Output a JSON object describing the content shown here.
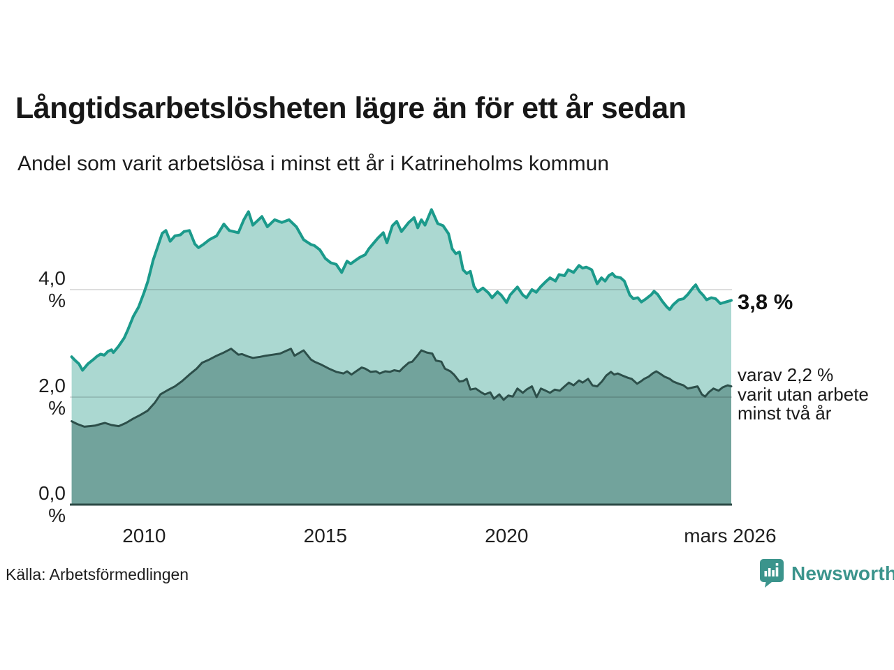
{
  "header": {
    "title": "Långtidsarbetslösheten lägre än för ett år sedan",
    "subtitle": "Andel som varit arbetslösa i minst ett år i Katrineholms kommun"
  },
  "chart_data": {
    "type": "area",
    "title": "Långtidsarbetslösheten lägre än för ett år sedan",
    "xlabel": "",
    "ylabel": "",
    "x_range": [
      2007.95,
      2026.22
    ],
    "ylim": [
      0,
      5.6
    ],
    "grid": "horizontal",
    "legend_position": "none",
    "y_axis": {
      "ticks": [
        {
          "label": "4,0 %",
          "value": 4.0
        },
        {
          "label": "2,0 %",
          "value": 2.0
        },
        {
          "label": "0,0 %",
          "value": 0.0
        }
      ]
    },
    "x_axis": {
      "ticks": [
        {
          "label": "2010",
          "year": 2010
        },
        {
          "label": "2015",
          "year": 2015
        },
        {
          "label": "2020",
          "year": 2020
        },
        {
          "label": "mars 2026",
          "year": 2026.17
        }
      ]
    },
    "annotations": {
      "latest_primary": "3,8 %",
      "secondary_lines": [
        "varav 2,2 %",
        "varit utan arbete",
        "minst två år"
      ]
    },
    "series": [
      {
        "name": "Andel som varit arbetslösa i minst ett år",
        "line_color": "#1b9a8b",
        "fill_color": "#abd8d1",
        "line_width": 4,
        "end_value_label": "3,8 %",
        "points": [
          [
            2008.0,
            2.75
          ],
          [
            2008.1,
            2.68
          ],
          [
            2008.2,
            2.62
          ],
          [
            2008.3,
            2.5
          ],
          [
            2008.45,
            2.62
          ],
          [
            2008.6,
            2.7
          ],
          [
            2008.7,
            2.76
          ],
          [
            2008.8,
            2.8
          ],
          [
            2008.9,
            2.78
          ],
          [
            2009.0,
            2.85
          ],
          [
            2009.1,
            2.88
          ],
          [
            2009.15,
            2.83
          ],
          [
            2009.3,
            2.95
          ],
          [
            2009.45,
            3.1
          ],
          [
            2009.55,
            3.25
          ],
          [
            2009.7,
            3.5
          ],
          [
            2009.85,
            3.68
          ],
          [
            2010.0,
            3.95
          ],
          [
            2010.1,
            4.15
          ],
          [
            2010.25,
            4.55
          ],
          [
            2010.4,
            4.85
          ],
          [
            2010.5,
            5.05
          ],
          [
            2010.6,
            5.1
          ],
          [
            2010.72,
            4.9
          ],
          [
            2010.85,
            5.0
          ],
          [
            2011.0,
            5.02
          ],
          [
            2011.1,
            5.08
          ],
          [
            2011.25,
            5.1
          ],
          [
            2011.4,
            4.85
          ],
          [
            2011.5,
            4.78
          ],
          [
            2011.65,
            4.85
          ],
          [
            2011.8,
            4.93
          ],
          [
            2012.0,
            5.0
          ],
          [
            2012.2,
            5.22
          ],
          [
            2012.35,
            5.1
          ],
          [
            2012.6,
            5.06
          ],
          [
            2012.75,
            5.3
          ],
          [
            2012.88,
            5.45
          ],
          [
            2013.0,
            5.2
          ],
          [
            2013.25,
            5.36
          ],
          [
            2013.4,
            5.17
          ],
          [
            2013.6,
            5.3
          ],
          [
            2013.8,
            5.25
          ],
          [
            2014.0,
            5.3
          ],
          [
            2014.2,
            5.17
          ],
          [
            2014.4,
            4.93
          ],
          [
            2014.6,
            4.84
          ],
          [
            2014.7,
            4.82
          ],
          [
            2014.85,
            4.74
          ],
          [
            2015.0,
            4.58
          ],
          [
            2015.15,
            4.5
          ],
          [
            2015.3,
            4.47
          ],
          [
            2015.45,
            4.32
          ],
          [
            2015.6,
            4.53
          ],
          [
            2015.7,
            4.48
          ],
          [
            2015.8,
            4.53
          ],
          [
            2015.95,
            4.6
          ],
          [
            2016.1,
            4.65
          ],
          [
            2016.2,
            4.76
          ],
          [
            2016.3,
            4.84
          ],
          [
            2016.45,
            4.96
          ],
          [
            2016.6,
            5.06
          ],
          [
            2016.7,
            4.87
          ],
          [
            2016.85,
            5.19
          ],
          [
            2016.97,
            5.27
          ],
          [
            2017.1,
            5.08
          ],
          [
            2017.3,
            5.25
          ],
          [
            2017.45,
            5.34
          ],
          [
            2017.55,
            5.15
          ],
          [
            2017.65,
            5.3
          ],
          [
            2017.75,
            5.2
          ],
          [
            2017.93,
            5.49
          ],
          [
            2018.1,
            5.23
          ],
          [
            2018.25,
            5.19
          ],
          [
            2018.4,
            5.04
          ],
          [
            2018.5,
            4.76
          ],
          [
            2018.6,
            4.67
          ],
          [
            2018.7,
            4.7
          ],
          [
            2018.8,
            4.37
          ],
          [
            2018.9,
            4.3
          ],
          [
            2019.0,
            4.34
          ],
          [
            2019.1,
            4.06
          ],
          [
            2019.2,
            3.96
          ],
          [
            2019.35,
            4.03
          ],
          [
            2019.5,
            3.94
          ],
          [
            2019.6,
            3.85
          ],
          [
            2019.75,
            3.96
          ],
          [
            2019.85,
            3.9
          ],
          [
            2020.0,
            3.76
          ],
          [
            2020.1,
            3.9
          ],
          [
            2020.3,
            4.05
          ],
          [
            2020.45,
            3.9
          ],
          [
            2020.55,
            3.85
          ],
          [
            2020.7,
            4.0
          ],
          [
            2020.82,
            3.95
          ],
          [
            2020.95,
            4.06
          ],
          [
            2021.1,
            4.16
          ],
          [
            2021.2,
            4.22
          ],
          [
            2021.35,
            4.16
          ],
          [
            2021.45,
            4.28
          ],
          [
            2021.6,
            4.26
          ],
          [
            2021.7,
            4.37
          ],
          [
            2021.85,
            4.32
          ],
          [
            2022.0,
            4.45
          ],
          [
            2022.1,
            4.4
          ],
          [
            2022.2,
            4.42
          ],
          [
            2022.35,
            4.37
          ],
          [
            2022.5,
            4.11
          ],
          [
            2022.62,
            4.22
          ],
          [
            2022.72,
            4.16
          ],
          [
            2022.82,
            4.26
          ],
          [
            2022.92,
            4.3
          ],
          [
            2023.0,
            4.24
          ],
          [
            2023.15,
            4.22
          ],
          [
            2023.25,
            4.16
          ],
          [
            2023.4,
            3.9
          ],
          [
            2023.5,
            3.83
          ],
          [
            2023.62,
            3.85
          ],
          [
            2023.72,
            3.77
          ],
          [
            2023.85,
            3.83
          ],
          [
            2024.0,
            3.91
          ],
          [
            2024.07,
            3.97
          ],
          [
            2024.17,
            3.91
          ],
          [
            2024.3,
            3.78
          ],
          [
            2024.42,
            3.68
          ],
          [
            2024.5,
            3.63
          ],
          [
            2024.6,
            3.72
          ],
          [
            2024.75,
            3.81
          ],
          [
            2024.88,
            3.83
          ],
          [
            2025.0,
            3.91
          ],
          [
            2025.15,
            4.04
          ],
          [
            2025.22,
            4.09
          ],
          [
            2025.32,
            3.97
          ],
          [
            2025.42,
            3.9
          ],
          [
            2025.52,
            3.81
          ],
          [
            2025.65,
            3.85
          ],
          [
            2025.77,
            3.83
          ],
          [
            2025.9,
            3.74
          ],
          [
            2026.05,
            3.77
          ],
          [
            2026.2,
            3.8
          ]
        ]
      },
      {
        "name": "varav utan arbete minst två år",
        "line_color": "#2d4f4a",
        "fill_color": "#72a39c",
        "line_width": 3,
        "end_value_label": "2,2 %",
        "points": [
          [
            2008.0,
            1.55
          ],
          [
            2008.15,
            1.5
          ],
          [
            2008.35,
            1.45
          ],
          [
            2008.5,
            1.46
          ],
          [
            2008.65,
            1.47
          ],
          [
            2008.8,
            1.5
          ],
          [
            2008.92,
            1.52
          ],
          [
            2009.1,
            1.48
          ],
          [
            2009.3,
            1.46
          ],
          [
            2009.5,
            1.52
          ],
          [
            2009.7,
            1.6
          ],
          [
            2009.9,
            1.67
          ],
          [
            2010.1,
            1.75
          ],
          [
            2010.3,
            1.9
          ],
          [
            2010.45,
            2.05
          ],
          [
            2010.65,
            2.13
          ],
          [
            2010.85,
            2.2
          ],
          [
            2011.05,
            2.3
          ],
          [
            2011.25,
            2.42
          ],
          [
            2011.45,
            2.53
          ],
          [
            2011.6,
            2.64
          ],
          [
            2011.8,
            2.7
          ],
          [
            2012.0,
            2.77
          ],
          [
            2012.2,
            2.83
          ],
          [
            2012.4,
            2.9
          ],
          [
            2012.6,
            2.79
          ],
          [
            2012.7,
            2.8
          ],
          [
            2012.85,
            2.76
          ],
          [
            2013.0,
            2.73
          ],
          [
            2013.2,
            2.75
          ],
          [
            2013.35,
            2.77
          ],
          [
            2013.55,
            2.79
          ],
          [
            2013.75,
            2.81
          ],
          [
            2013.95,
            2.87
          ],
          [
            2014.05,
            2.9
          ],
          [
            2014.15,
            2.77
          ],
          [
            2014.3,
            2.83
          ],
          [
            2014.4,
            2.87
          ],
          [
            2014.6,
            2.7
          ],
          [
            2014.7,
            2.66
          ],
          [
            2014.9,
            2.6
          ],
          [
            2015.1,
            2.53
          ],
          [
            2015.3,
            2.47
          ],
          [
            2015.5,
            2.44
          ],
          [
            2015.6,
            2.48
          ],
          [
            2015.72,
            2.42
          ],
          [
            2015.85,
            2.48
          ],
          [
            2016.0,
            2.55
          ],
          [
            2016.1,
            2.53
          ],
          [
            2016.25,
            2.47
          ],
          [
            2016.4,
            2.48
          ],
          [
            2016.5,
            2.44
          ],
          [
            2016.65,
            2.48
          ],
          [
            2016.78,
            2.47
          ],
          [
            2016.9,
            2.5
          ],
          [
            2017.05,
            2.48
          ],
          [
            2017.15,
            2.55
          ],
          [
            2017.3,
            2.64
          ],
          [
            2017.4,
            2.66
          ],
          [
            2017.55,
            2.78
          ],
          [
            2017.65,
            2.87
          ],
          [
            2017.8,
            2.83
          ],
          [
            2017.95,
            2.81
          ],
          [
            2018.05,
            2.68
          ],
          [
            2018.2,
            2.66
          ],
          [
            2018.3,
            2.53
          ],
          [
            2018.45,
            2.48
          ],
          [
            2018.55,
            2.42
          ],
          [
            2018.7,
            2.29
          ],
          [
            2018.8,
            2.3
          ],
          [
            2018.9,
            2.34
          ],
          [
            2019.0,
            2.14
          ],
          [
            2019.15,
            2.16
          ],
          [
            2019.3,
            2.09
          ],
          [
            2019.4,
            2.05
          ],
          [
            2019.55,
            2.09
          ],
          [
            2019.65,
            1.97
          ],
          [
            2019.8,
            2.05
          ],
          [
            2019.92,
            1.95
          ],
          [
            2020.05,
            2.03
          ],
          [
            2020.17,
            2.01
          ],
          [
            2020.3,
            2.16
          ],
          [
            2020.45,
            2.08
          ],
          [
            2020.55,
            2.14
          ],
          [
            2020.7,
            2.2
          ],
          [
            2020.83,
            2.0
          ],
          [
            2020.95,
            2.16
          ],
          [
            2021.08,
            2.12
          ],
          [
            2021.2,
            2.08
          ],
          [
            2021.33,
            2.14
          ],
          [
            2021.47,
            2.12
          ],
          [
            2021.6,
            2.2
          ],
          [
            2021.72,
            2.27
          ],
          [
            2021.85,
            2.22
          ],
          [
            2022.0,
            2.31
          ],
          [
            2022.1,
            2.27
          ],
          [
            2022.25,
            2.34
          ],
          [
            2022.37,
            2.22
          ],
          [
            2022.5,
            2.2
          ],
          [
            2022.63,
            2.29
          ],
          [
            2022.75,
            2.4
          ],
          [
            2022.88,
            2.47
          ],
          [
            2022.97,
            2.42
          ],
          [
            2023.07,
            2.44
          ],
          [
            2023.2,
            2.4
          ],
          [
            2023.35,
            2.36
          ],
          [
            2023.45,
            2.34
          ],
          [
            2023.6,
            2.25
          ],
          [
            2023.7,
            2.29
          ],
          [
            2023.8,
            2.34
          ],
          [
            2023.92,
            2.38
          ],
          [
            2024.03,
            2.44
          ],
          [
            2024.13,
            2.48
          ],
          [
            2024.23,
            2.44
          ],
          [
            2024.36,
            2.38
          ],
          [
            2024.5,
            2.34
          ],
          [
            2024.6,
            2.29
          ],
          [
            2024.75,
            2.25
          ],
          [
            2024.88,
            2.22
          ],
          [
            2025.0,
            2.16
          ],
          [
            2025.14,
            2.18
          ],
          [
            2025.27,
            2.2
          ],
          [
            2025.39,
            2.05
          ],
          [
            2025.48,
            2.01
          ],
          [
            2025.58,
            2.09
          ],
          [
            2025.71,
            2.16
          ],
          [
            2025.85,
            2.12
          ],
          [
            2025.96,
            2.18
          ],
          [
            2026.1,
            2.22
          ],
          [
            2026.2,
            2.2
          ]
        ]
      }
    ]
  },
  "footer": {
    "source": "Källa: Arbetsförmedlingen",
    "brand": "Newsworthy"
  },
  "colors": {
    "accent_teal": "#1b9a8b",
    "light_fill": "#abd8d1",
    "dark_line": "#2d4f4a",
    "dark_fill": "#72a39c",
    "brand_teal": "#3b948c",
    "gridline": "#dddddd",
    "text": "#1a1a1a"
  }
}
